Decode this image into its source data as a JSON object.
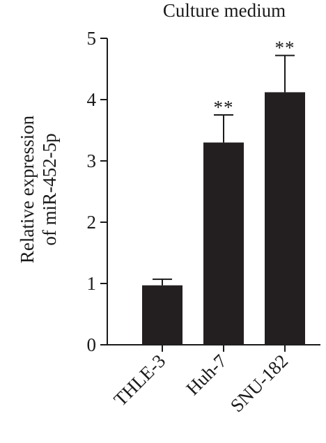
{
  "chart_data": {
    "type": "bar",
    "title": "Culture medium",
    "ylabel_lines": [
      "Relative expression",
      "of miR-452-5p"
    ],
    "categories": [
      "THLE-3",
      "Huh-7",
      "SNU-182"
    ],
    "values": [
      0.97,
      3.3,
      4.12
    ],
    "errors": [
      0.1,
      0.45,
      0.6
    ],
    "significance": [
      "",
      "**",
      "**"
    ],
    "ylim": [
      0,
      5
    ],
    "yticks": [
      "0",
      "1",
      "2",
      "3",
      "4",
      "5"
    ],
    "bar_color": "#231f20",
    "grid": false
  }
}
